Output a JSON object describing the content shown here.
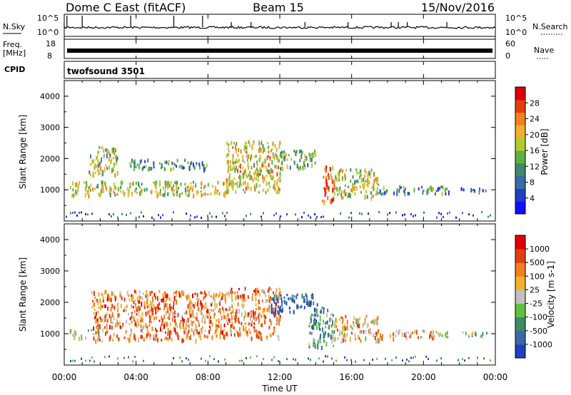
{
  "header": {
    "station": "Dome C East (fitACF)",
    "beam": "Beam 15",
    "date": "15/Nov/2016"
  },
  "noise_panel": {
    "left_label": "N.Sky",
    "left_ticks": [
      "10^5",
      "10^0"
    ],
    "right_label": "N.Search",
    "right_ticks": [
      "10^5",
      "10^0"
    ]
  },
  "freq_panel": {
    "left_label_top": "Freq.",
    "left_label_unit": "[MHz]",
    "left_ticks": [
      "18",
      "8"
    ],
    "right_label": "Nave",
    "right_ticks": [
      "60",
      "0"
    ]
  },
  "cpid": {
    "label": "CPID",
    "value": "twofsound 3501"
  },
  "chart_data": [
    {
      "type": "heatmap",
      "name": "Power panel",
      "ylabel": "Slant Range [km]",
      "yticks": [
        "1000",
        "2000",
        "3000",
        "4000"
      ],
      "ylim": [
        0,
        4500
      ],
      "xlim_hours": [
        0,
        24
      ],
      "colorbar": {
        "label": "Power [dB]",
        "ticks": [
          "4",
          "8",
          "12",
          "16",
          "20",
          "24",
          "28"
        ],
        "colors": [
          "#1010ff",
          "#2040c0",
          "#3a6aa8",
          "#3c8a6a",
          "#60b040",
          "#b0cc30",
          "#f0b030",
          "#f08020",
          "#e04010",
          "#e00000"
        ]
      },
      "echo_regions": [
        {
          "t0": 0.3,
          "t1": 9.2,
          "r0": 850,
          "r1": 1300,
          "level": 0.55
        },
        {
          "t0": 1.3,
          "t1": 3.0,
          "r0": 1500,
          "r1": 2400,
          "level": 0.5
        },
        {
          "t0": 3.5,
          "t1": 8.0,
          "r0": 1700,
          "r1": 2000,
          "level": 0.35
        },
        {
          "t0": 9.0,
          "t1": 12.0,
          "r0": 950,
          "r1": 2600,
          "level": 0.6
        },
        {
          "t0": 12.0,
          "t1": 14.0,
          "r0": 1700,
          "r1": 2300,
          "level": 0.45
        },
        {
          "t0": 14.3,
          "t1": 15.0,
          "r0": 600,
          "r1": 1800,
          "level": 0.8
        },
        {
          "t0": 15.0,
          "t1": 17.5,
          "r0": 800,
          "r1": 1700,
          "level": 0.55
        },
        {
          "t0": 17.5,
          "t1": 21.5,
          "r0": 900,
          "r1": 1150,
          "level": 0.3
        },
        {
          "t0": 22.0,
          "t1": 23.5,
          "r0": 950,
          "r1": 1100,
          "level": 0.2
        }
      ]
    },
    {
      "type": "heatmap",
      "name": "Velocity panel",
      "ylabel": "Slant Range [km]",
      "yticks": [
        "1000",
        "2000",
        "3000",
        "4000"
      ],
      "ylim": [
        0,
        4500
      ],
      "xlim_hours": [
        0,
        24
      ],
      "colorbar": {
        "label": "Velocity [m s-1]",
        "ticks": [
          "1000",
          "500",
          "100",
          "25",
          "-25",
          "-100",
          "-500",
          "-1000"
        ],
        "colors": [
          "#2040c0",
          "#3a6aa8",
          "#3c8a6a",
          "#60c040",
          "#c0c0c0",
          "#f0b030",
          "#f08020",
          "#e04010",
          "#e00000"
        ]
      },
      "echo_regions": [
        {
          "t0": 0.3,
          "t1": 2.0,
          "r0": 900,
          "r1": 1150,
          "level": 0.45
        },
        {
          "t0": 1.5,
          "t1": 9.0,
          "r0": 800,
          "r1": 2400,
          "level": 0.72
        },
        {
          "t0": 9.0,
          "t1": 12.0,
          "r0": 900,
          "r1": 2500,
          "level": 0.7
        },
        {
          "t0": 11.5,
          "t1": 14.2,
          "r0": 1700,
          "r1": 2300,
          "level": 0.1
        },
        {
          "t0": 13.6,
          "t1": 15.0,
          "r0": 600,
          "r1": 1900,
          "level": 0.3
        },
        {
          "t0": 15.0,
          "t1": 17.5,
          "r0": 800,
          "r1": 1600,
          "level": 0.6
        },
        {
          "t0": 17.5,
          "t1": 21.5,
          "r0": 900,
          "r1": 1150,
          "level": 0.62
        },
        {
          "t0": 22.0,
          "t1": 23.5,
          "r0": 950,
          "r1": 1100,
          "level": 0.45
        }
      ]
    }
  ],
  "xaxis": {
    "ticks": [
      "00:00",
      "04:00",
      "08:00",
      "12:00",
      "16:00",
      "20:00",
      "00:00"
    ],
    "label": "Time UT"
  }
}
